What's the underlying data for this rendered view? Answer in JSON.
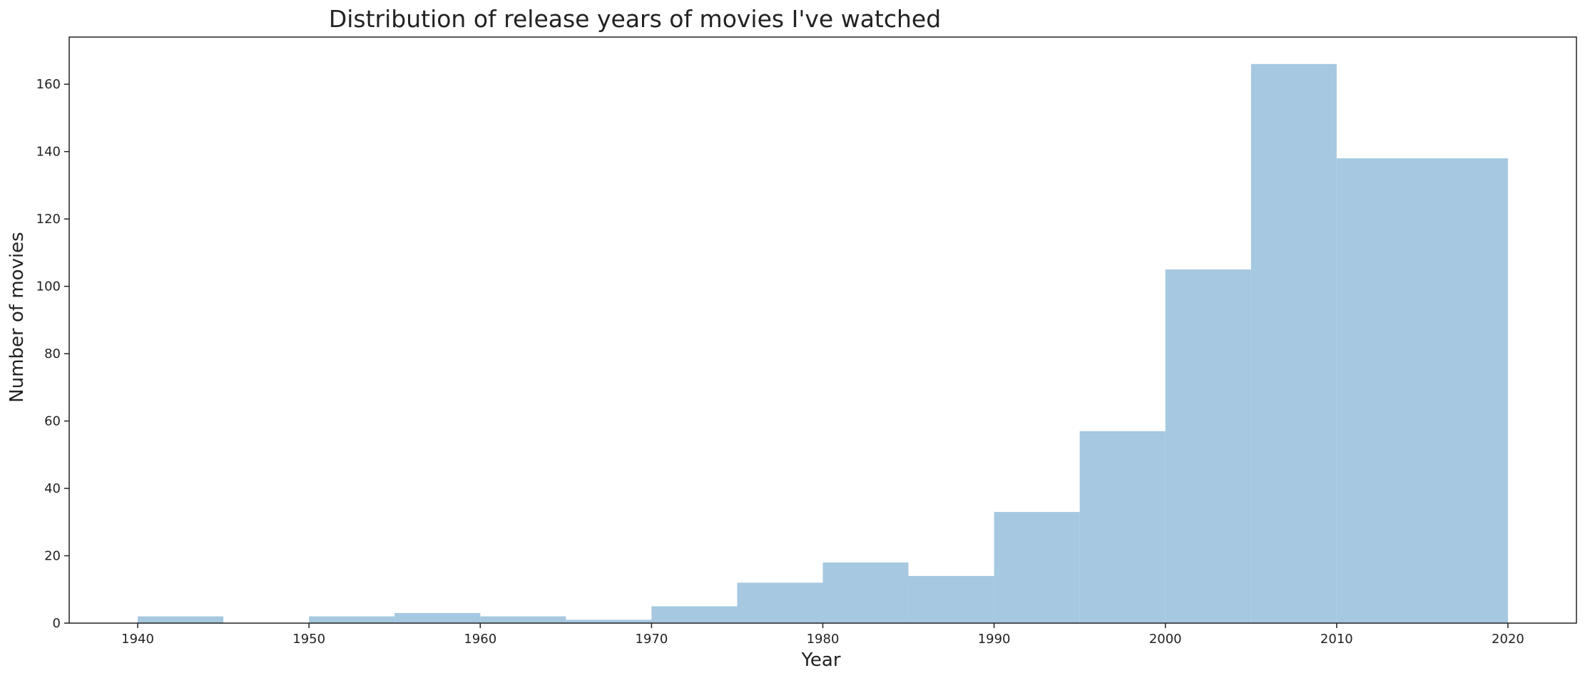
{
  "chart_data": {
    "type": "bar",
    "title": "Distribution of release years of movies I've watched",
    "xlabel": "Year",
    "ylabel": "Number of movies",
    "xlim": [
      1936,
      2024
    ],
    "ylim": [
      0,
      174
    ],
    "xticks": [
      1940,
      1950,
      1960,
      1970,
      1980,
      1990,
      2000,
      2010,
      2020
    ],
    "yticks": [
      0,
      20,
      40,
      60,
      80,
      100,
      120,
      140,
      160
    ],
    "grid": false,
    "bar_color": "#a6c8e0",
    "bins": [
      {
        "start": 1940,
        "end": 1945,
        "value": 2
      },
      {
        "start": 1945,
        "end": 1950,
        "value": 0
      },
      {
        "start": 1950,
        "end": 1955,
        "value": 2
      },
      {
        "start": 1955,
        "end": 1960,
        "value": 3
      },
      {
        "start": 1960,
        "end": 1965,
        "value": 2
      },
      {
        "start": 1965,
        "end": 1970,
        "value": 1
      },
      {
        "start": 1970,
        "end": 1975,
        "value": 5
      },
      {
        "start": 1975,
        "end": 1980,
        "value": 12
      },
      {
        "start": 1980,
        "end": 1985,
        "value": 18
      },
      {
        "start": 1985,
        "end": 1990,
        "value": 14
      },
      {
        "start": 1990,
        "end": 1995,
        "value": 33
      },
      {
        "start": 1995,
        "end": 2000,
        "value": 57
      },
      {
        "start": 2000,
        "end": 2005,
        "value": 105
      },
      {
        "start": 2005,
        "end": 2010,
        "value": 166
      },
      {
        "start": 2010,
        "end": 2015,
        "value": 138
      },
      {
        "start": 2015,
        "end": 2020,
        "value": 138
      }
    ]
  }
}
